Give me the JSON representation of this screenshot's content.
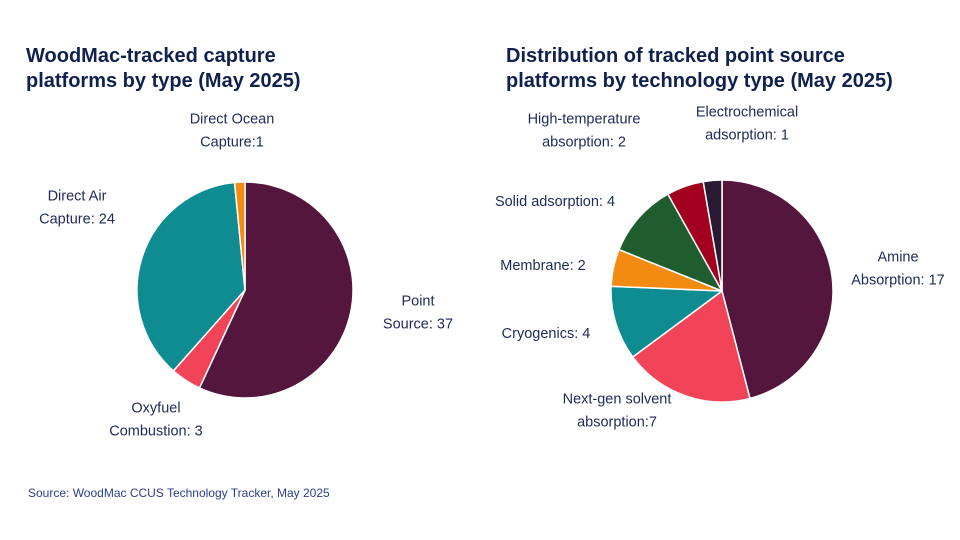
{
  "source_note": "Source: WoodMac CCUS Technology Tracker, May 2025",
  "chart_data": [
    {
      "type": "pie",
      "title_lines": [
        "WoodMac-tracked capture",
        "platforms by type (May 2025)"
      ],
      "slices": [
        {
          "id": "point-source",
          "label_lines": [
            "Point",
            "Source: 37"
          ],
          "value": 37,
          "color": "#54163c"
        },
        {
          "id": "oxyfuel-combustion",
          "label_lines": [
            "Oxyfuel",
            "Combustion: 3"
          ],
          "value": 3,
          "color": "#f24459"
        },
        {
          "id": "direct-air-capture",
          "label_lines": [
            "Direct Air",
            "Capture: 24"
          ],
          "value": 24,
          "color": "#0f8c91"
        },
        {
          "id": "direct-ocean-capture",
          "label_lines": [
            "Direct Ocean",
            "Capture:1"
          ],
          "value": 1,
          "color": "#f38a12"
        }
      ]
    },
    {
      "type": "pie",
      "title_lines": [
        "Distribution of tracked point source",
        "platforms by technology type (May 2025)"
      ],
      "slices": [
        {
          "id": "amine-absorption",
          "label_lines": [
            "Amine",
            "Absorption: 17"
          ],
          "value": 17,
          "color": "#54163c"
        },
        {
          "id": "next-gen-solvent-absorption",
          "label_lines": [
            "Next-gen solvent",
            "absorption:7"
          ],
          "value": 7,
          "color": "#f24459"
        },
        {
          "id": "cryogenics",
          "label_lines": [
            "Cryogenics: 4"
          ],
          "value": 4,
          "color": "#0f8c91"
        },
        {
          "id": "membrane",
          "label_lines": [
            "Membrane: 2"
          ],
          "value": 2,
          "color": "#f38a12"
        },
        {
          "id": "solid-adsorption",
          "label_lines": [
            "Solid adsorption: 4"
          ],
          "value": 4,
          "color": "#1f5c2e"
        },
        {
          "id": "high-temperature-absorption",
          "label_lines": [
            "High-temperature",
            "absorption: 2"
          ],
          "value": 2,
          "color": "#a3001f"
        },
        {
          "id": "electrochemical-adsorption",
          "label_lines": [
            "Electrochemical",
            "adsorption: 1"
          ],
          "value": 1,
          "color": "#2a1933"
        }
      ]
    }
  ]
}
